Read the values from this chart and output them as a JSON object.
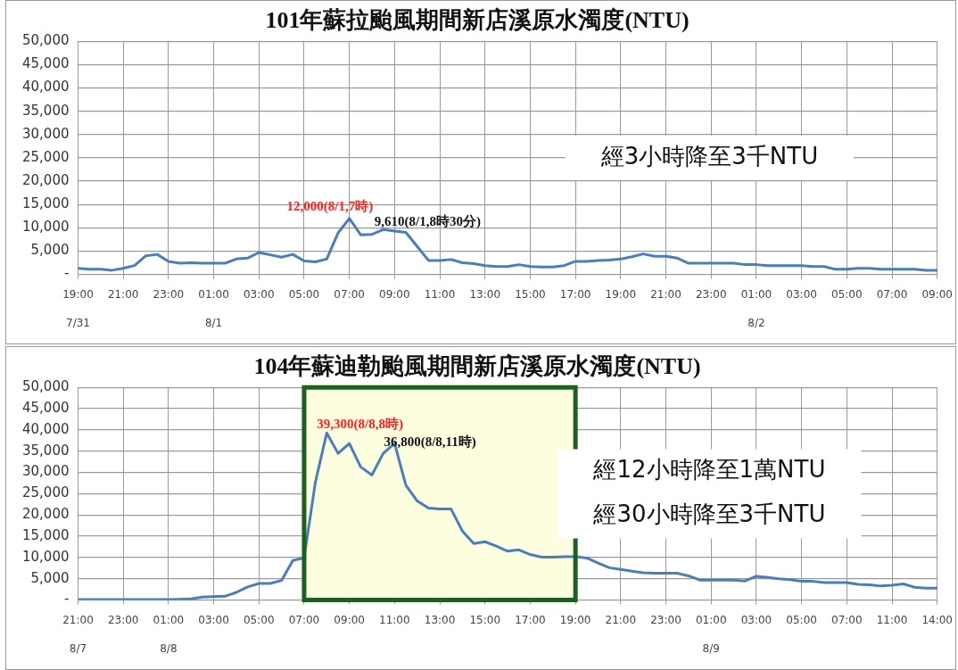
{
  "chart_data": [
    {
      "type": "line",
      "title": "101年蘇拉颱風期間新店溪原水濁度(NTU)",
      "categories": [
        "19:00\n7/31",
        null,
        null,
        null,
        "21:00",
        null,
        null,
        null,
        "23:00",
        null,
        null,
        null,
        "01:00\n8/1",
        null,
        null,
        null,
        "03:00",
        null,
        null,
        null,
        "05:00",
        null,
        null,
        null,
        "07:00",
        null,
        null,
        null,
        "09:00",
        null,
        null,
        null,
        "11:00",
        null,
        null,
        null,
        "13:00",
        null,
        null,
        null,
        "15:00",
        null,
        null,
        null,
        "17:00",
        null,
        null,
        null,
        "19:00",
        null,
        null,
        null,
        "21:00",
        null,
        null,
        null,
        "23:00",
        null,
        null,
        null,
        "01:00\n8/2",
        null,
        null,
        null,
        "03:00",
        null,
        null,
        null,
        "05:00",
        null,
        null,
        null,
        "07:00",
        null,
        null,
        null,
        "09:00"
      ],
      "series": [
        {
          "color": "#4a7ebb",
          "values": [
            1300,
            1100,
            1100,
            900,
            1300,
            1900,
            4000,
            4300,
            2800,
            2400,
            2500,
            2400,
            2400,
            2400,
            3300,
            3500,
            4700,
            4200,
            3700,
            4300,
            2900,
            2700,
            3300,
            8900,
            12000,
            8500,
            8600,
            9610,
            9300,
            9000,
            6000,
            3000,
            3000,
            3200,
            2500,
            2300,
            1900,
            1700,
            1700,
            2100,
            1700,
            1600,
            1600,
            1900,
            2800,
            2800,
            3000,
            3100,
            3300,
            3800,
            4400,
            3900,
            3900,
            3500,
            2400,
            2400,
            2400,
            2400,
            2400,
            2100,
            2100,
            1900,
            1900,
            1900,
            1900,
            1700,
            1700,
            1100,
            1100,
            1300,
            1300,
            1100,
            1100,
            1100,
            1100,
            900,
            900
          ]
        }
      ],
      "ylim": [
        0,
        50000
      ],
      "yticks": [
        {
          "value": 0,
          "label": "-"
        },
        {
          "value": 5000,
          "label": "5,000"
        },
        {
          "value": 10000,
          "label": "10,000"
        },
        {
          "value": 15000,
          "label": "15,000"
        },
        {
          "value": 20000,
          "label": "20,000"
        },
        {
          "value": 25000,
          "label": "25,000"
        },
        {
          "value": 30000,
          "label": "30,000"
        },
        {
          "value": 35000,
          "label": "35,000"
        },
        {
          "value": 40000,
          "label": "40,000"
        },
        {
          "value": 45000,
          "label": "45,000"
        },
        {
          "value": 50000,
          "label": "50,000"
        }
      ],
      "grid": true,
      "legend": false,
      "marker": "none",
      "annotations": [
        "經3小時降至3千NTU",
        "12,000(8/1,7時)",
        "9,610(8/1,8時30分)"
      ]
    },
    {
      "type": "line",
      "title": "104年蘇迪勒颱風期間新店溪原水濁度(NTU)",
      "categories": [
        "21:00\n8/7",
        null,
        null,
        null,
        "23:00",
        null,
        null,
        null,
        "01:00\n8/8",
        null,
        null,
        null,
        "03:00",
        null,
        null,
        null,
        "05:00",
        null,
        null,
        null,
        "07:00",
        null,
        null,
        null,
        "09:00",
        null,
        null,
        null,
        "11:00",
        null,
        null,
        null,
        "13:00",
        null,
        null,
        null,
        "15:00",
        null,
        null,
        null,
        "17:00",
        null,
        null,
        null,
        "19:00",
        null,
        null,
        null,
        "21:00",
        null,
        null,
        null,
        "23:00",
        null,
        null,
        null,
        "01:00\n8/9",
        null,
        null,
        null,
        "03:00",
        null,
        null,
        null,
        "05:00",
        null,
        null,
        null,
        "07:00",
        null,
        null,
        null,
        "11:00",
        null,
        null,
        null,
        "14:00"
      ],
      "series": [
        {
          "color": "#4a7ebb",
          "values": [
            100,
            100,
            100,
            100,
            100,
            100,
            100,
            100,
            100,
            200,
            300,
            700,
            800,
            900,
            1800,
            3100,
            3900,
            3900,
            4600,
            9300,
            9900,
            27800,
            39300,
            34500,
            36800,
            31300,
            29400,
            34500,
            36800,
            27000,
            23300,
            21600,
            21400,
            21400,
            16200,
            13300,
            13700,
            12700,
            11500,
            11800,
            10700,
            10100,
            10100,
            10200,
            10200,
            9900,
            8700,
            7600,
            7200,
            6800,
            6400,
            6300,
            6300,
            6300,
            5700,
            4700,
            4700,
            4700,
            4700,
            4500,
            5600,
            5300,
            5000,
            4800,
            4400,
            4400,
            4100,
            4100,
            4100,
            3700,
            3600,
            3300,
            3500,
            3800,
            3000,
            2800,
            2800
          ]
        }
      ],
      "ylim": [
        0,
        50000
      ],
      "yticks": [
        {
          "value": 0,
          "label": "-"
        },
        {
          "value": 5000,
          "label": "5,000"
        },
        {
          "value": 10000,
          "label": "10,000"
        },
        {
          "value": 15000,
          "label": "15,000"
        },
        {
          "value": 20000,
          "label": "20,000"
        },
        {
          "value": 25000,
          "label": "25,000"
        },
        {
          "value": 30000,
          "label": "30,000"
        },
        {
          "value": 35000,
          "label": "35,000"
        },
        {
          "value": 40000,
          "label": "40,000"
        },
        {
          "value": 45000,
          "label": "45,000"
        },
        {
          "value": 50000,
          "label": "50,000"
        }
      ],
      "grid": true,
      "legend": false,
      "marker": "none",
      "bands": [
        {
          "axis": "x",
          "from": "07:00",
          "to": "19:00",
          "color": "#fdfde0"
        }
      ],
      "annotations": [
        "經12小時降至1萬NTU",
        "經30小時降至3千NTU",
        "39,300(8/8,8時)",
        "36,800(8/8,11時)"
      ]
    }
  ]
}
